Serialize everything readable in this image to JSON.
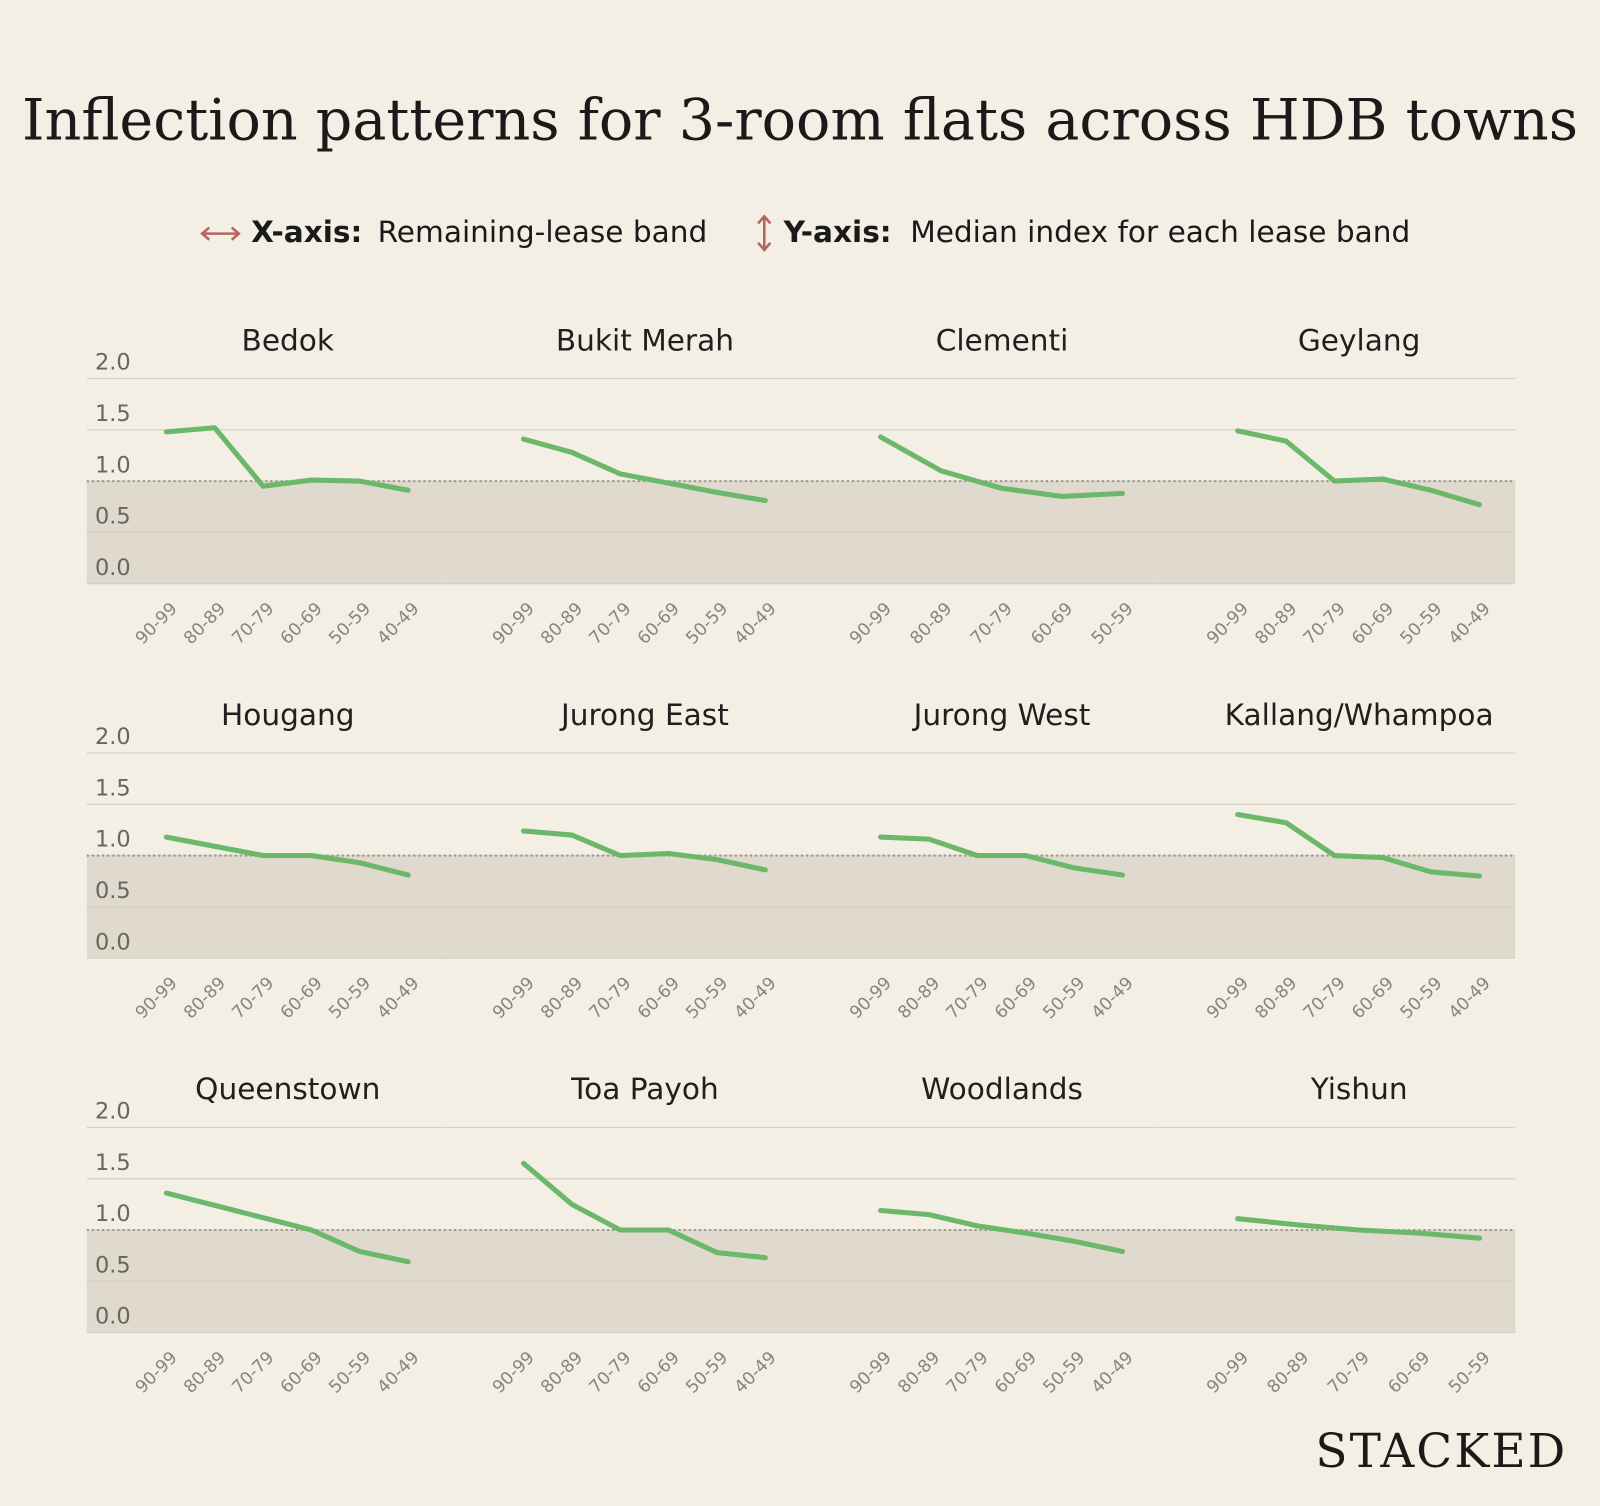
{
  "title": "Inflection patterns for 3-room flats across HDB towns",
  "legend": {
    "x_label": "X-axis:",
    "x_text": "Remaining-lease band",
    "y_label": "Y-axis:",
    "y_text": "Median index for each lease band"
  },
  "brand": "STACKED",
  "chart_data": [
    {
      "type": "line",
      "title": "Bedok",
      "categories": [
        "90-99",
        "80-89",
        "70-79",
        "60-69",
        "50-59",
        "40-49"
      ],
      "values": [
        1.48,
        1.52,
        0.95,
        1.01,
        1.0,
        0.91
      ],
      "color": "#6cb86a",
      "ylim": [
        0,
        2
      ],
      "yticks": [
        {
          "value": 0,
          "label": "0.0"
        },
        0.5,
        {
          "value": 1,
          "label": "1.0"
        },
        1.5,
        {
          "value": 2,
          "label": "2.0"
        }
      ],
      "grid": true,
      "reference_line": 1
    },
    {
      "type": "line",
      "title": "Bukit Merah",
      "categories": [
        "90-99",
        "80-89",
        "70-79",
        "60-69",
        "50-59",
        "40-49"
      ],
      "values": [
        1.41,
        1.28,
        1.07,
        0.98,
        0.89,
        0.81
      ],
      "color": "#6cb86a",
      "ylim": [
        0,
        2
      ],
      "yticks": [
        {
          "value": 0,
          "label": "0.0"
        },
        0.5,
        {
          "value": 1,
          "label": "1.0"
        },
        1.5,
        {
          "value": 2,
          "label": "2.0"
        }
      ],
      "grid": true,
      "reference_line": 1
    },
    {
      "type": "line",
      "title": "Clementi",
      "categories": [
        "90-99",
        "80-89",
        "70-79",
        "60-69",
        "50-59"
      ],
      "values": [
        1.43,
        1.1,
        0.93,
        0.85,
        0.88
      ],
      "color": "#6cb86a",
      "ylim": [
        0,
        2
      ],
      "yticks": [
        {
          "value": 0,
          "label": "0.0"
        },
        0.5,
        {
          "value": 1,
          "label": "1.0"
        },
        1.5,
        {
          "value": 2,
          "label": "2.0"
        }
      ],
      "grid": true,
      "reference_line": 1
    },
    {
      "type": "line",
      "title": "Geylang",
      "categories": [
        "90-99",
        "80-89",
        "70-79",
        "60-69",
        "50-59",
        "40-49"
      ],
      "values": [
        1.49,
        1.39,
        1.0,
        1.02,
        0.91,
        0.77
      ],
      "color": "#6cb86a",
      "ylim": [
        0,
        2
      ],
      "yticks": [
        {
          "value": 0,
          "label": "0.0"
        },
        0.5,
        {
          "value": 1,
          "label": "1.0"
        },
        1.5,
        {
          "value": 2,
          "label": "2.0"
        }
      ],
      "grid": true,
      "reference_line": 1
    },
    {
      "type": "line",
      "title": "Hougang",
      "categories": [
        "90-99",
        "80-89",
        "70-79",
        "60-69",
        "50-59",
        "40-49"
      ],
      "values": [
        1.18,
        1.09,
        1.0,
        1.0,
        0.93,
        0.81
      ],
      "color": "#6cb86a",
      "ylim": [
        0,
        2
      ],
      "yticks": [
        {
          "value": 0,
          "label": "0.0"
        },
        0.5,
        {
          "value": 1,
          "label": "1.0"
        },
        1.5,
        {
          "value": 2,
          "label": "2.0"
        }
      ],
      "grid": true,
      "reference_line": 1
    },
    {
      "type": "line",
      "title": "Jurong East",
      "categories": [
        "90-99",
        "80-89",
        "70-79",
        "60-69",
        "50-59",
        "40-49"
      ],
      "values": [
        1.24,
        1.2,
        1.0,
        1.02,
        0.96,
        0.86
      ],
      "color": "#6cb86a",
      "ylim": [
        0,
        2
      ],
      "yticks": [
        {
          "value": 0,
          "label": "0.0"
        },
        0.5,
        {
          "value": 1,
          "label": "1.0"
        },
        1.5,
        {
          "value": 2,
          "label": "2.0"
        }
      ],
      "grid": true,
      "reference_line": 1
    },
    {
      "type": "line",
      "title": "Jurong West",
      "categories": [
        "90-99",
        "80-89",
        "70-79",
        "60-69",
        "50-59",
        "40-49"
      ],
      "values": [
        1.18,
        1.16,
        1.0,
        1.0,
        0.88,
        0.81
      ],
      "color": "#6cb86a",
      "ylim": [
        0,
        2
      ],
      "yticks": [
        {
          "value": 0,
          "label": "0.0"
        },
        0.5,
        {
          "value": 1,
          "label": "1.0"
        },
        1.5,
        {
          "value": 2,
          "label": "2.0"
        }
      ],
      "grid": true,
      "reference_line": 1
    },
    {
      "type": "line",
      "title": "Kallang/Whampoa",
      "categories": [
        "90-99",
        "80-89",
        "70-79",
        "60-69",
        "50-59",
        "40-49"
      ],
      "values": [
        1.4,
        1.32,
        1.0,
        0.98,
        0.84,
        0.8
      ],
      "color": "#6cb86a",
      "ylim": [
        0,
        2
      ],
      "yticks": [
        {
          "value": 0,
          "label": "0.0"
        },
        0.5,
        {
          "value": 1,
          "label": "1.0"
        },
        1.5,
        {
          "value": 2,
          "label": "2.0"
        }
      ],
      "grid": true,
      "reference_line": 1
    },
    {
      "type": "line",
      "title": "Queenstown",
      "categories": [
        "90-99",
        "80-89",
        "70-79",
        "60-69",
        "50-59",
        "40-49"
      ],
      "values": [
        1.36,
        1.24,
        1.12,
        1.0,
        0.79,
        0.69
      ],
      "color": "#6cb86a",
      "ylim": [
        0,
        2
      ],
      "yticks": [
        {
          "value": 0,
          "label": "0.0"
        },
        0.5,
        {
          "value": 1,
          "label": "1.0"
        },
        1.5,
        {
          "value": 2,
          "label": "2.0"
        }
      ],
      "grid": true,
      "reference_line": 1
    },
    {
      "type": "line",
      "title": "Toa Payoh",
      "categories": [
        "90-99",
        "80-89",
        "70-79",
        "60-69",
        "50-59",
        "40-49"
      ],
      "values": [
        1.65,
        1.25,
        1.0,
        1.0,
        0.78,
        0.73
      ],
      "color": "#6cb86a",
      "ylim": [
        0,
        2
      ],
      "yticks": [
        {
          "value": 0,
          "label": "0.0"
        },
        0.5,
        {
          "value": 1,
          "label": "1.0"
        },
        1.5,
        {
          "value": 2,
          "label": "2.0"
        }
      ],
      "grid": true,
      "reference_line": 1
    },
    {
      "type": "line",
      "title": "Woodlands",
      "categories": [
        "90-99",
        "80-89",
        "70-79",
        "60-69",
        "50-59",
        "40-49"
      ],
      "values": [
        1.19,
        1.15,
        1.04,
        0.97,
        0.89,
        0.79
      ],
      "color": "#6cb86a",
      "ylim": [
        0,
        2
      ],
      "yticks": [
        {
          "value": 0,
          "label": "0.0"
        },
        0.5,
        {
          "value": 1,
          "label": "1.0"
        },
        1.5,
        {
          "value": 2,
          "label": "2.0"
        }
      ],
      "grid": true,
      "reference_line": 1
    },
    {
      "type": "line",
      "title": "Yishun",
      "categories": [
        "90-99",
        "80-89",
        "70-79",
        "60-69",
        "50-59"
      ],
      "values": [
        1.11,
        1.05,
        1.0,
        0.97,
        0.92
      ],
      "color": "#6cb86a",
      "ylim": [
        0,
        2
      ],
      "yticks": [
        {
          "value": 0,
          "label": "0.0"
        },
        0.5,
        {
          "value": 1,
          "label": "1.0"
        },
        1.5,
        {
          "value": 2,
          "label": "2.0"
        }
      ],
      "grid": true,
      "reference_line": 1
    }
  ]
}
